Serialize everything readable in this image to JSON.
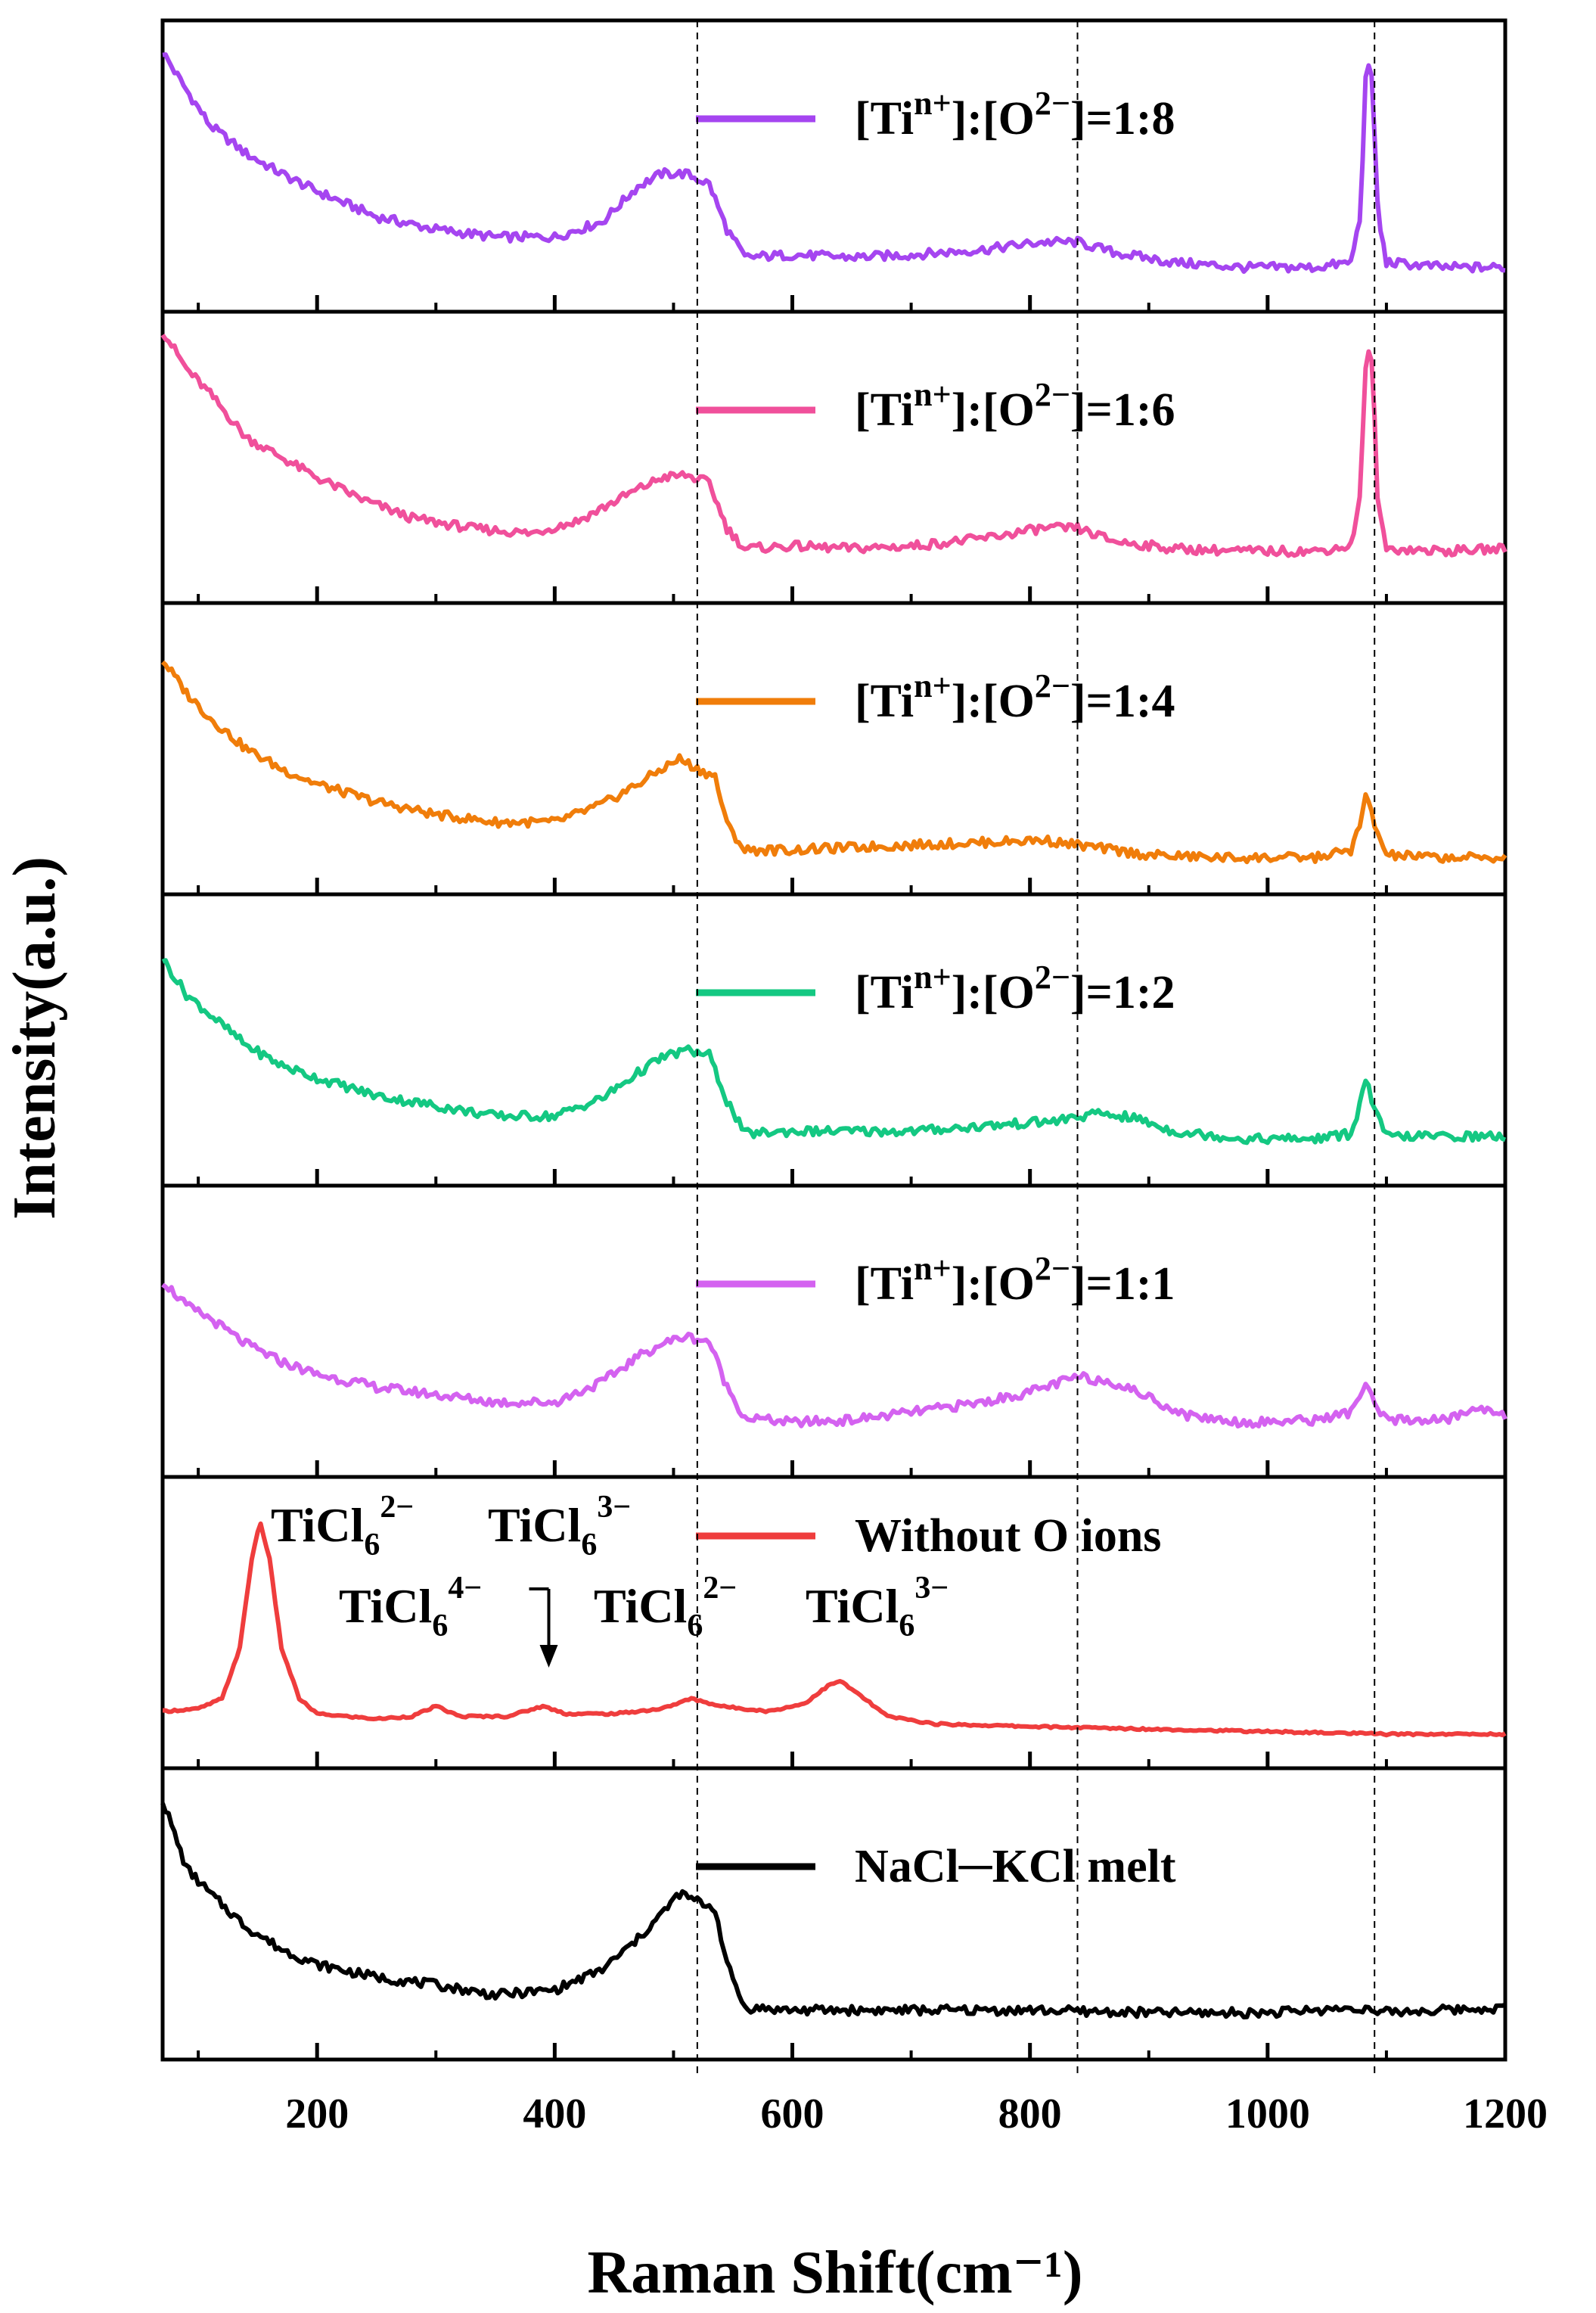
{
  "chart_data": {
    "type": "line",
    "title": "",
    "xlabel": "Raman Shift(cm⁻¹)",
    "ylabel": "Intensity(a.u.)",
    "xlim": [
      70,
      1200
    ],
    "x_ticks": [
      200,
      400,
      600,
      800,
      1000,
      1200
    ],
    "x_minor_ticks": [
      100,
      300,
      500,
      700,
      900,
      1100
    ],
    "reference_lines_x": [
      520,
      840,
      1090
    ],
    "legend_placement": "top-right of each panel",
    "series": [
      {
        "name": "[Tiⁿ⁺]:[O²⁻]=1:8",
        "legend": {
          "base": "[Ti",
          "sup1": "n+",
          "mid": "]:[O",
          "sup2": "2−",
          "end": "]=1:8"
        },
        "color": "#a545f0",
        "points": [
          [
            70,
            0.95
          ],
          [
            90,
            0.8
          ],
          [
            110,
            0.66
          ],
          [
            140,
            0.55
          ],
          [
            170,
            0.47
          ],
          [
            200,
            0.4
          ],
          [
            250,
            0.3
          ],
          [
            300,
            0.25
          ],
          [
            350,
            0.22
          ],
          [
            400,
            0.22
          ],
          [
            440,
            0.28
          ],
          [
            470,
            0.42
          ],
          [
            490,
            0.47
          ],
          [
            510,
            0.47
          ],
          [
            530,
            0.43
          ],
          [
            545,
            0.25
          ],
          [
            560,
            0.14
          ],
          [
            600,
            0.15
          ],
          [
            650,
            0.14
          ],
          [
            700,
            0.15
          ],
          [
            760,
            0.17
          ],
          [
            810,
            0.2
          ],
          [
            840,
            0.2
          ],
          [
            870,
            0.16
          ],
          [
            920,
            0.12
          ],
          [
            980,
            0.1
          ],
          [
            1040,
            0.1
          ],
          [
            1070,
            0.12
          ],
          [
            1078,
            0.3
          ],
          [
            1083,
            0.9
          ],
          [
            1088,
            0.85
          ],
          [
            1093,
            0.3
          ],
          [
            1100,
            0.12
          ],
          [
            1150,
            0.1
          ],
          [
            1200,
            0.1
          ]
        ]
      },
      {
        "name": "[Tiⁿ⁺]:[O²⁻]=1:6",
        "legend": {
          "base": "[Ti",
          "sup1": "n+",
          "mid": "]:[O",
          "sup2": "2−",
          "end": "]=1:6"
        },
        "color": "#f0509b",
        "points": [
          [
            70,
            1.0
          ],
          [
            90,
            0.85
          ],
          [
            110,
            0.75
          ],
          [
            140,
            0.58
          ],
          [
            170,
            0.5
          ],
          [
            200,
            0.42
          ],
          [
            240,
            0.33
          ],
          [
            280,
            0.26
          ],
          [
            330,
            0.22
          ],
          [
            380,
            0.2
          ],
          [
            420,
            0.25
          ],
          [
            460,
            0.35
          ],
          [
            490,
            0.42
          ],
          [
            510,
            0.43
          ],
          [
            530,
            0.4
          ],
          [
            545,
            0.22
          ],
          [
            560,
            0.14
          ],
          [
            600,
            0.15
          ],
          [
            650,
            0.14
          ],
          [
            700,
            0.15
          ],
          [
            760,
            0.18
          ],
          [
            810,
            0.22
          ],
          [
            840,
            0.22
          ],
          [
            870,
            0.17
          ],
          [
            920,
            0.14
          ],
          [
            980,
            0.13
          ],
          [
            1040,
            0.13
          ],
          [
            1070,
            0.15
          ],
          [
            1078,
            0.35
          ],
          [
            1083,
            0.92
          ],
          [
            1088,
            0.88
          ],
          [
            1093,
            0.3
          ],
          [
            1100,
            0.14
          ],
          [
            1150,
            0.13
          ],
          [
            1200,
            0.14
          ]
        ]
      },
      {
        "name": "[Tiⁿ⁺]:[O²⁻]=1:4",
        "legend": {
          "base": "[Ti",
          "sup1": "n+",
          "mid": "]:[O",
          "sup2": "2−",
          "end": "]=1:4"
        },
        "color": "#f07d0a",
        "points": [
          [
            70,
            0.85
          ],
          [
            90,
            0.72
          ],
          [
            110,
            0.62
          ],
          [
            140,
            0.5
          ],
          [
            170,
            0.42
          ],
          [
            200,
            0.36
          ],
          [
            250,
            0.29
          ],
          [
            300,
            0.24
          ],
          [
            350,
            0.21
          ],
          [
            400,
            0.21
          ],
          [
            440,
            0.28
          ],
          [
            470,
            0.36
          ],
          [
            490,
            0.42
          ],
          [
            505,
            0.46
          ],
          [
            520,
            0.42
          ],
          [
            535,
            0.39
          ],
          [
            545,
            0.2
          ],
          [
            560,
            0.1
          ],
          [
            600,
            0.1
          ],
          [
            650,
            0.11
          ],
          [
            700,
            0.12
          ],
          [
            760,
            0.13
          ],
          [
            810,
            0.14
          ],
          [
            840,
            0.12
          ],
          [
            900,
            0.08
          ],
          [
            960,
            0.07
          ],
          [
            1040,
            0.07
          ],
          [
            1070,
            0.1
          ],
          [
            1078,
            0.2
          ],
          [
            1083,
            0.32
          ],
          [
            1090,
            0.2
          ],
          [
            1100,
            0.08
          ],
          [
            1150,
            0.07
          ],
          [
            1200,
            0.07
          ]
        ]
      },
      {
        "name": "[Tiⁿ⁺]:[O²⁻]=1:2",
        "legend": {
          "base": "[Ti",
          "sup1": "n+",
          "mid": "]:[O",
          "sup2": "2−",
          "end": "]=1:2"
        },
        "color": "#14c882",
        "points": [
          [
            70,
            0.82
          ],
          [
            90,
            0.68
          ],
          [
            110,
            0.6
          ],
          [
            140,
            0.48
          ],
          [
            170,
            0.4
          ],
          [
            200,
            0.35
          ],
          [
            250,
            0.28
          ],
          [
            300,
            0.24
          ],
          [
            350,
            0.2
          ],
          [
            400,
            0.2
          ],
          [
            440,
            0.27
          ],
          [
            470,
            0.37
          ],
          [
            490,
            0.43
          ],
          [
            510,
            0.46
          ],
          [
            530,
            0.44
          ],
          [
            545,
            0.26
          ],
          [
            560,
            0.13
          ],
          [
            600,
            0.14
          ],
          [
            650,
            0.14
          ],
          [
            700,
            0.14
          ],
          [
            760,
            0.16
          ],
          [
            820,
            0.18
          ],
          [
            860,
            0.21
          ],
          [
            890,
            0.19
          ],
          [
            920,
            0.14
          ],
          [
            980,
            0.11
          ],
          [
            1040,
            0.11
          ],
          [
            1070,
            0.13
          ],
          [
            1078,
            0.25
          ],
          [
            1083,
            0.35
          ],
          [
            1090,
            0.22
          ],
          [
            1100,
            0.12
          ],
          [
            1150,
            0.12
          ],
          [
            1200,
            0.12
          ]
        ]
      },
      {
        "name": "[Tiⁿ⁺]:[O²⁻]=1:1",
        "legend": {
          "base": "[Ti",
          "sup1": "n+",
          "mid": "]:[O",
          "sup2": "2−",
          "end": "]=1:1"
        },
        "color": "#d462f0",
        "points": [
          [
            70,
            0.7
          ],
          [
            90,
            0.6
          ],
          [
            110,
            0.55
          ],
          [
            140,
            0.45
          ],
          [
            170,
            0.38
          ],
          [
            200,
            0.33
          ],
          [
            250,
            0.28
          ],
          [
            300,
            0.25
          ],
          [
            350,
            0.22
          ],
          [
            400,
            0.22
          ],
          [
            440,
            0.3
          ],
          [
            470,
            0.4
          ],
          [
            490,
            0.45
          ],
          [
            510,
            0.48
          ],
          [
            530,
            0.46
          ],
          [
            545,
            0.28
          ],
          [
            560,
            0.16
          ],
          [
            600,
            0.14
          ],
          [
            650,
            0.15
          ],
          [
            700,
            0.18
          ],
          [
            760,
            0.22
          ],
          [
            800,
            0.26
          ],
          [
            840,
            0.32
          ],
          [
            870,
            0.3
          ],
          [
            900,
            0.24
          ],
          [
            930,
            0.17
          ],
          [
            980,
            0.14
          ],
          [
            1040,
            0.15
          ],
          [
            1070,
            0.18
          ],
          [
            1078,
            0.25
          ],
          [
            1083,
            0.3
          ],
          [
            1090,
            0.2
          ],
          [
            1100,
            0.15
          ],
          [
            1150,
            0.15
          ],
          [
            1180,
            0.2
          ],
          [
            1200,
            0.17
          ]
        ]
      },
      {
        "name": "Without O ions",
        "legend": {
          "base": "Without O ions",
          "sup1": "",
          "mid": "",
          "sup2": "",
          "end": ""
        },
        "color": "#ef3d3d",
        "points": [
          [
            70,
            0.15
          ],
          [
            100,
            0.16
          ],
          [
            120,
            0.2
          ],
          [
            135,
            0.4
          ],
          [
            145,
            0.75
          ],
          [
            152,
            0.9
          ],
          [
            160,
            0.75
          ],
          [
            170,
            0.4
          ],
          [
            185,
            0.2
          ],
          [
            200,
            0.14
          ],
          [
            250,
            0.12
          ],
          [
            280,
            0.13
          ],
          [
            300,
            0.17
          ],
          [
            320,
            0.13
          ],
          [
            360,
            0.13
          ],
          [
            390,
            0.17
          ],
          [
            410,
            0.14
          ],
          [
            450,
            0.14
          ],
          [
            490,
            0.16
          ],
          [
            515,
            0.2
          ],
          [
            540,
            0.17
          ],
          [
            580,
            0.15
          ],
          [
            610,
            0.18
          ],
          [
            630,
            0.25
          ],
          [
            640,
            0.27
          ],
          [
            655,
            0.22
          ],
          [
            680,
            0.13
          ],
          [
            720,
            0.1
          ],
          [
            800,
            0.09
          ],
          [
            900,
            0.08
          ],
          [
            1000,
            0.07
          ],
          [
            1100,
            0.06
          ],
          [
            1200,
            0.06
          ]
        ]
      },
      {
        "name": "NaCl─KCl melt",
        "legend": {
          "base": "NaCl─KCl melt",
          "sup1": "",
          "mid": "",
          "sup2": "",
          "end": ""
        },
        "color": "#000000",
        "points": [
          [
            70,
            0.95
          ],
          [
            90,
            0.68
          ],
          [
            110,
            0.58
          ],
          [
            140,
            0.45
          ],
          [
            170,
            0.36
          ],
          [
            200,
            0.3
          ],
          [
            250,
            0.25
          ],
          [
            300,
            0.22
          ],
          [
            350,
            0.18
          ],
          [
            400,
            0.2
          ],
          [
            440,
            0.28
          ],
          [
            470,
            0.4
          ],
          [
            490,
            0.5
          ],
          [
            505,
            0.58
          ],
          [
            520,
            0.55
          ],
          [
            535,
            0.52
          ],
          [
            545,
            0.3
          ],
          [
            560,
            0.13
          ],
          [
            600,
            0.12
          ],
          [
            650,
            0.12
          ],
          [
            700,
            0.12
          ],
          [
            800,
            0.12
          ],
          [
            900,
            0.11
          ],
          [
            1000,
            0.11
          ],
          [
            1080,
            0.13
          ],
          [
            1090,
            0.11
          ],
          [
            1200,
            0.13
          ]
        ]
      }
    ],
    "annotations": [
      {
        "id": "a1",
        "base": "TiCl",
        "sub": "6",
        "sup": "2−"
      },
      {
        "id": "a2",
        "base": "TiCl",
        "sub": "6",
        "sup": "3−"
      },
      {
        "id": "a3",
        "base": "TiCl",
        "sub": "6",
        "sup": "4−"
      },
      {
        "id": "a4",
        "base": "TiCl",
        "sub": "6",
        "sup": "2−"
      },
      {
        "id": "a5",
        "base": "TiCl",
        "sub": "6",
        "sup": "3−"
      }
    ]
  }
}
